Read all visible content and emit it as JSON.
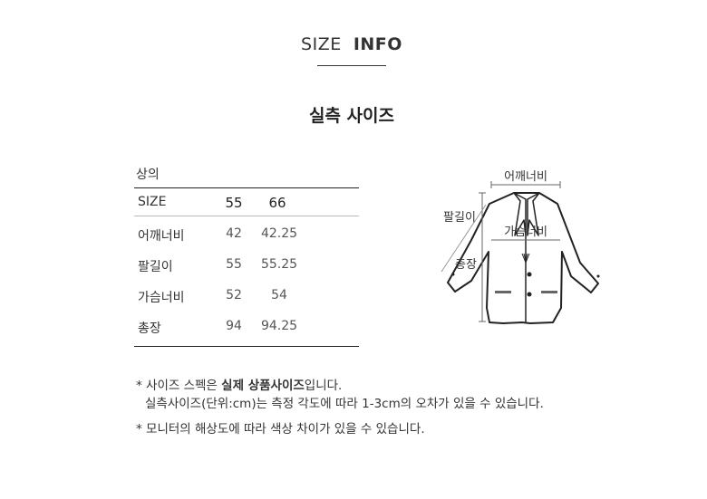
{
  "header": {
    "title_light": "SIZE",
    "title_bold": "INFO",
    "subtitle": "실측 사이즈"
  },
  "table": {
    "caption": "상의",
    "columns": [
      "SIZE",
      "55",
      "66"
    ],
    "rows": [
      {
        "label": "어깨너비",
        "values": [
          "42",
          "42.25"
        ]
      },
      {
        "label": "팔길이",
        "values": [
          "55",
          "55.25"
        ]
      },
      {
        "label": "가슴너비",
        "values": [
          "52",
          "54"
        ]
      },
      {
        "label": "총장",
        "values": [
          "94",
          "94.25"
        ]
      }
    ]
  },
  "diagram": {
    "labels": {
      "shoulder": "어깨너비",
      "sleeve": "팔길이",
      "chest": "가슴너비",
      "length": "총장"
    }
  },
  "notes": {
    "line1_prefix": "* 사이즈 스펙은 ",
    "line1_bold": "실제 상품사이즈",
    "line1_suffix": "입니다.",
    "line2": "실측사이즈(단위:cm)는 측정 각도에 따라 1-3cm의 오차가 있을 수 있습니다.",
    "line3": "* 모니터의 해상도에 따라 색상 차이가 있을 수 있습니다."
  }
}
